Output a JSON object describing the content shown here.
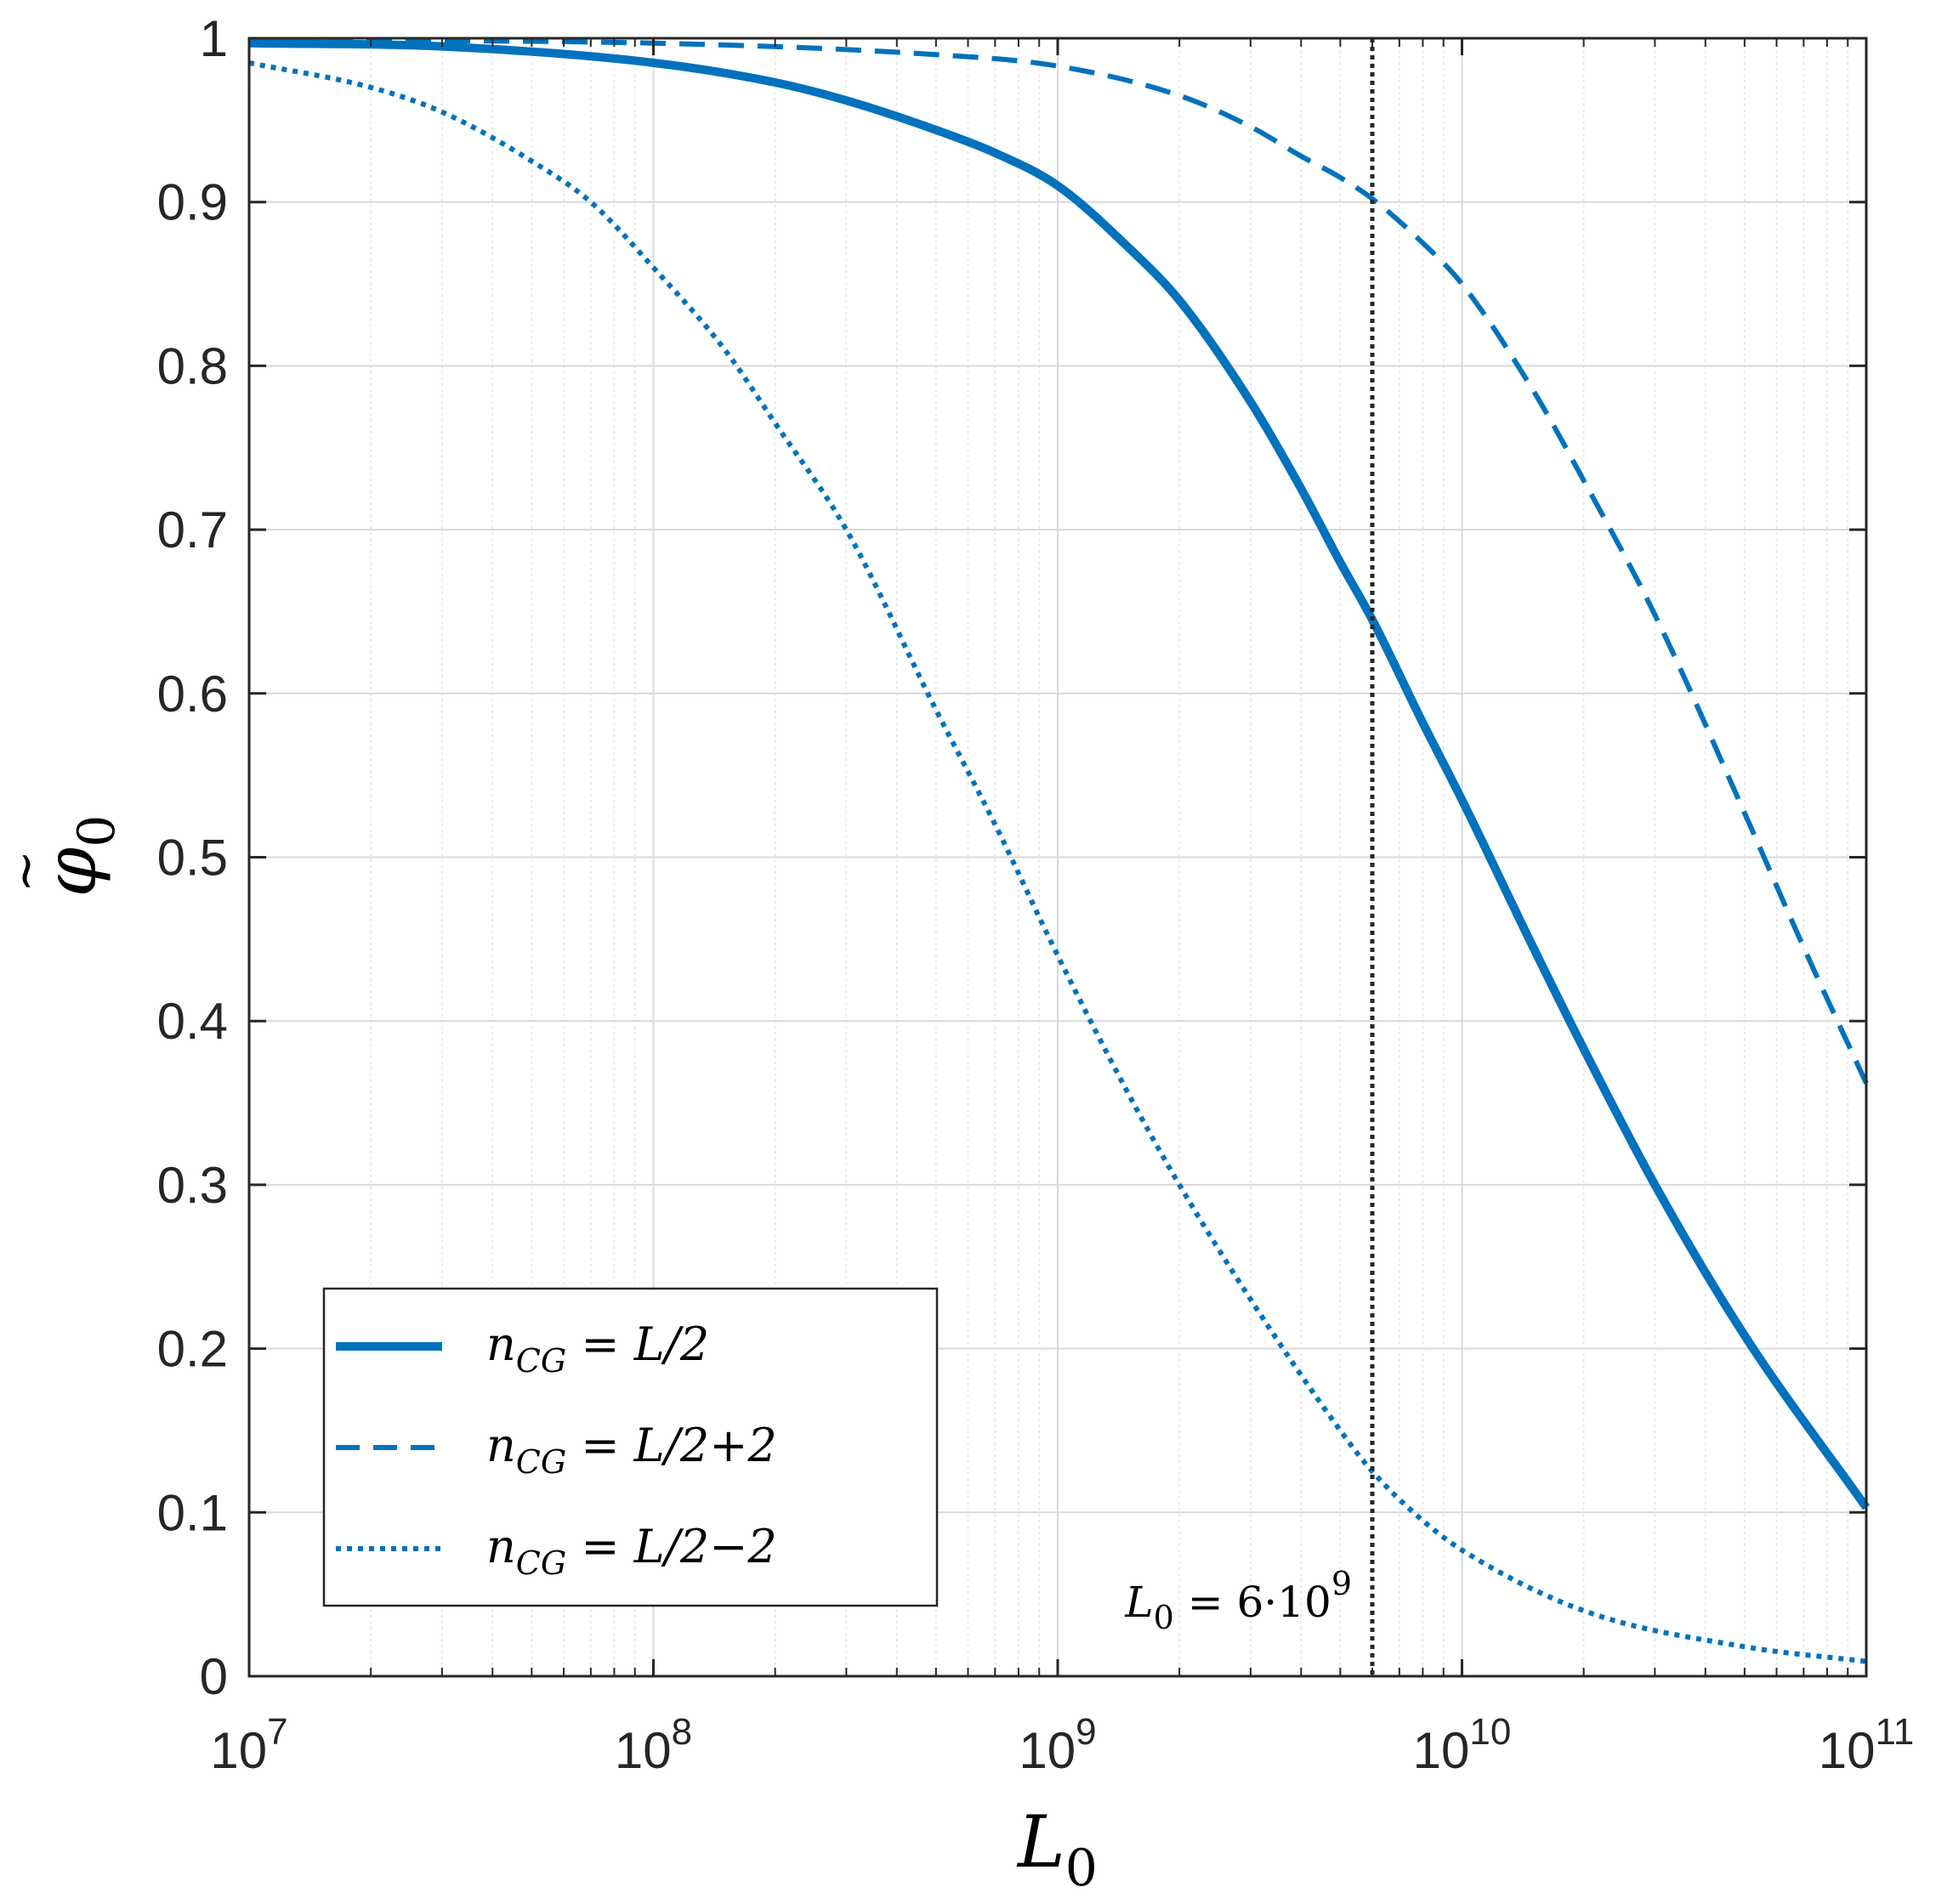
{
  "chart_data": {
    "type": "line",
    "xlabel": "L0",
    "ylabel": "φ̃0",
    "xscale": "log",
    "xlim": [
      10000000,
      100000000000
    ],
    "ylim": [
      0,
      1
    ],
    "x_tick_exponents": [
      "7",
      "8",
      "9",
      "10",
      "11"
    ],
    "y_tick_labels": [
      "0",
      "0.1",
      "0.2",
      "0.3",
      "0.4",
      "0.5",
      "0.6",
      "0.7",
      "0.8",
      "0.9",
      "1"
    ],
    "grid": true,
    "legend_position": "bottom-left",
    "series": [
      {
        "name": "n_CG = L/2",
        "style": "solid",
        "color": "#0072BD",
        "x": [
          10000000,
          30000000,
          100000000,
          200000000,
          300000000,
          500000000,
          700000000,
          1000000000,
          1500000000,
          2000000000,
          3000000000,
          4000000000,
          5000000000,
          6000000000,
          8000000000,
          10000000000,
          15000000000,
          20000000000,
          30000000000,
          50000000000,
          100000000000
        ],
        "y": [
          0.997,
          0.995,
          0.985,
          0.973,
          0.962,
          0.944,
          0.93,
          0.91,
          0.872,
          0.84,
          0.778,
          0.725,
          0.68,
          0.645,
          0.582,
          0.535,
          0.445,
          0.383,
          0.3,
          0.208,
          0.103
        ]
      },
      {
        "name": "n_CG = L/2+2",
        "style": "dashed",
        "color": "#0072BD",
        "x": [
          10000000,
          100000000,
          500000000,
          1000000000,
          2000000000,
          3000000000,
          4000000000,
          5000000000,
          6000000000,
          8000000000,
          10000000000,
          15000000000,
          20000000000,
          30000000000,
          50000000000,
          70000000000,
          100000000000
        ],
        "y": [
          0.999,
          0.997,
          0.99,
          0.983,
          0.965,
          0.946,
          0.928,
          0.915,
          0.902,
          0.875,
          0.85,
          0.785,
          0.73,
          0.648,
          0.527,
          0.445,
          0.362
        ]
      },
      {
        "name": "n_CG = L/2−2",
        "style": "dotted",
        "color": "#0072BD",
        "x": [
          10000000,
          20000000,
          30000000,
          50000000,
          70000000,
          100000000,
          150000000,
          200000000,
          300000000,
          500000000,
          700000000,
          1000000000,
          1500000000,
          2000000000,
          3000000000,
          5000000000,
          6000000000,
          8000000000,
          10000000000,
          20000000000,
          50000000000,
          100000000000
        ],
        "y": [
          0.985,
          0.97,
          0.955,
          0.925,
          0.9,
          0.86,
          0.81,
          0.765,
          0.7,
          0.59,
          0.52,
          0.44,
          0.355,
          0.3,
          0.23,
          0.15,
          0.125,
          0.095,
          0.077,
          0.04,
          0.018,
          0.009
        ]
      }
    ],
    "legend_entries": [
      {
        "lhs": "n",
        "sub": "CG",
        "rhs": "L/2"
      },
      {
        "lhs": "n",
        "sub": "CG",
        "rhs": "L/2+2"
      },
      {
        "lhs": "n",
        "sub": "CG",
        "rhs": "L/2−2"
      }
    ],
    "annotations": [
      {
        "x": 6000000000,
        "lhs": "L",
        "sub": "0",
        "coef": "6·10",
        "sup": "9",
        "text": "L0 = 6·10^9"
      }
    ]
  }
}
